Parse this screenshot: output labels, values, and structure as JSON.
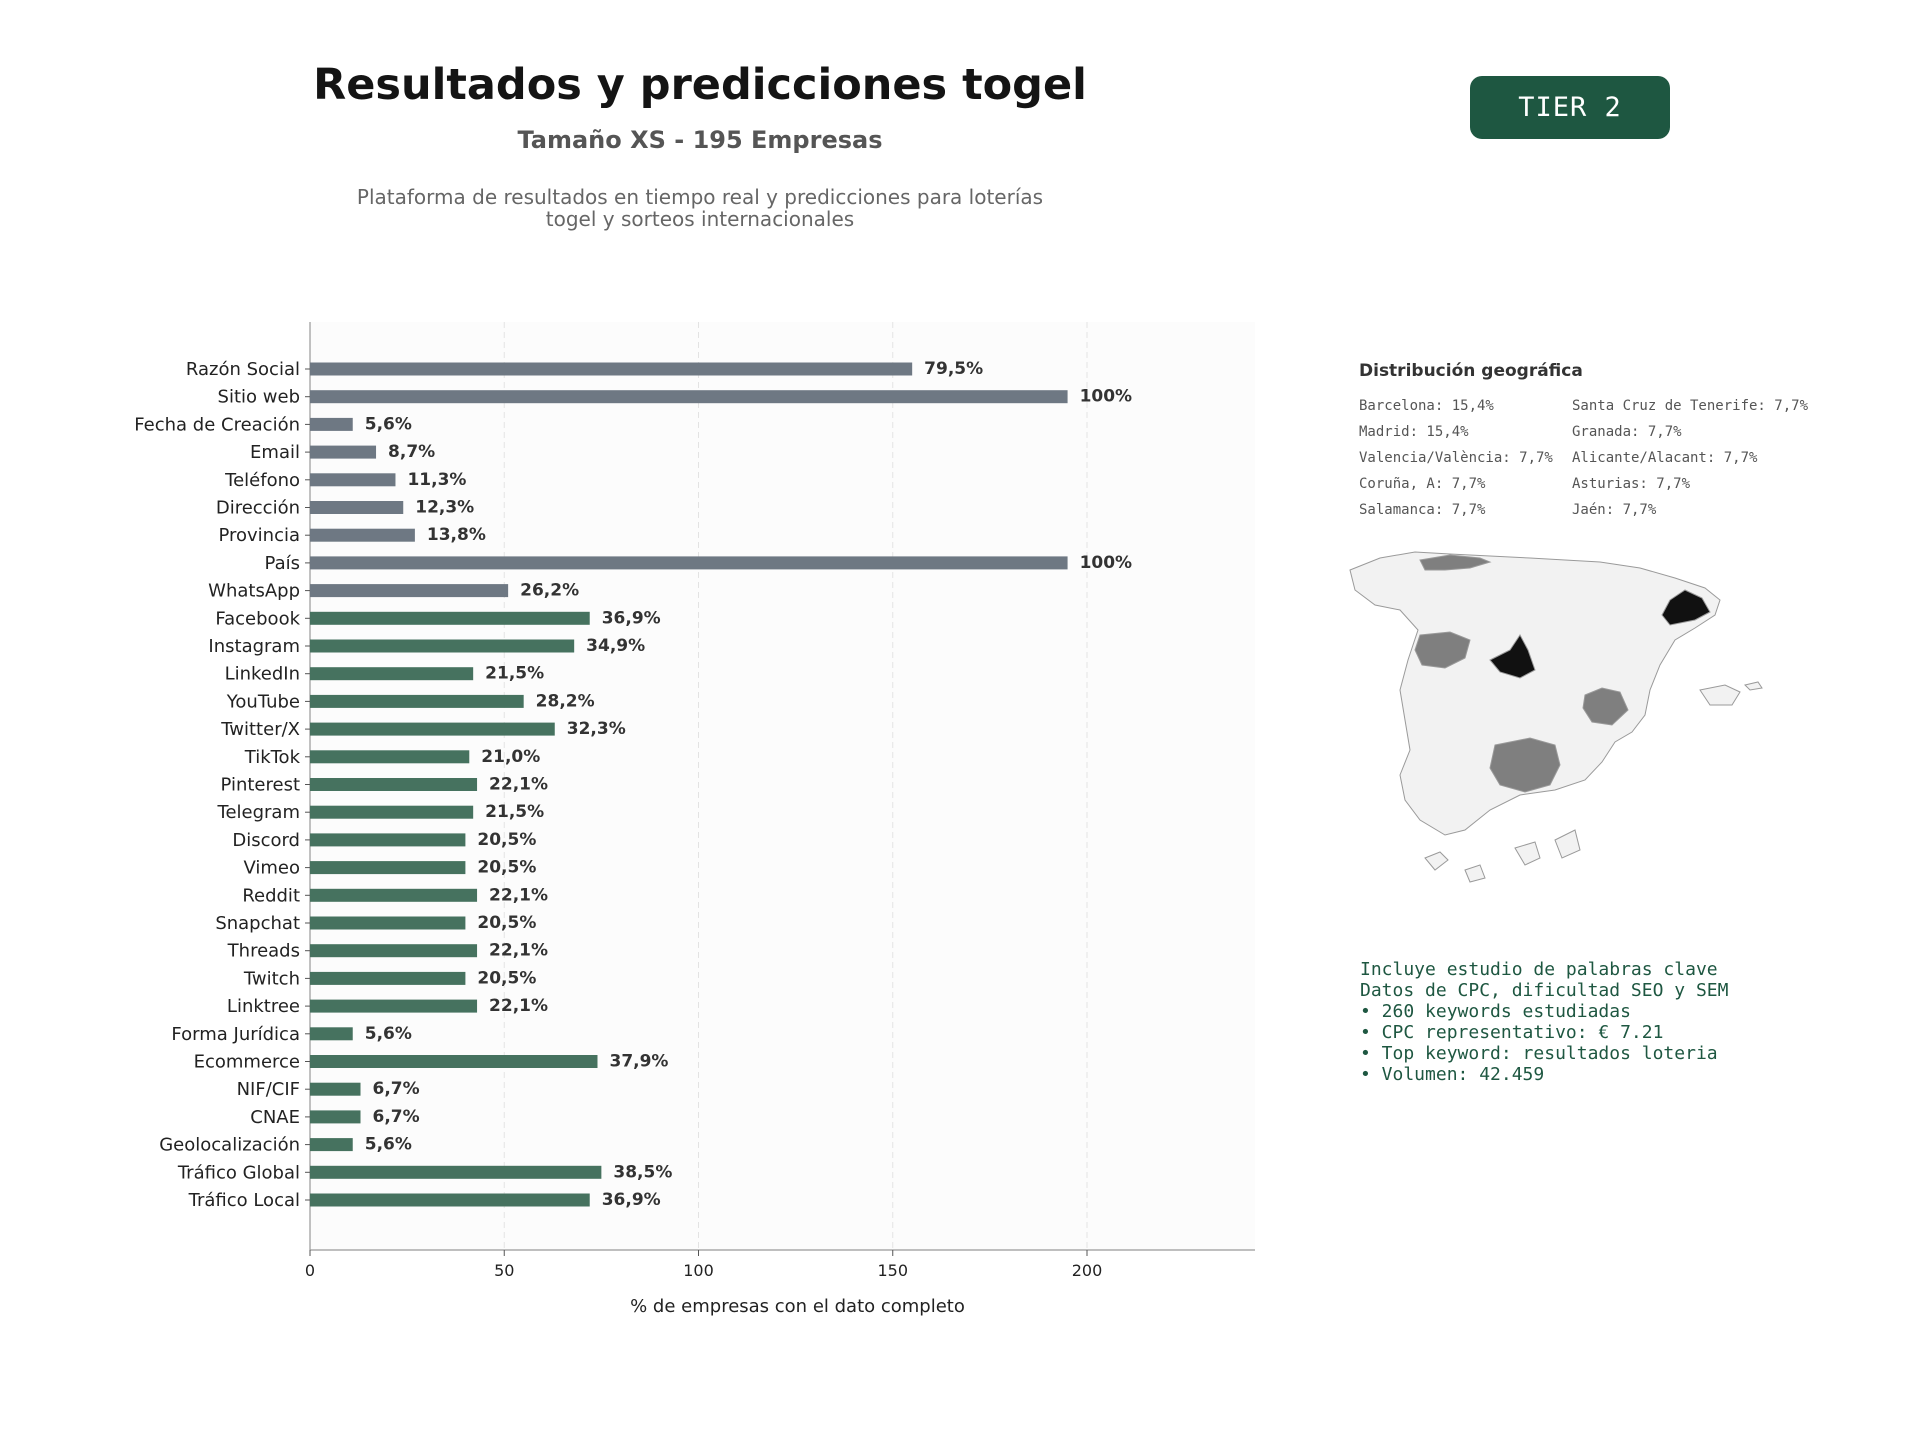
{
  "header": {
    "title": "Resultados y predicciones togel",
    "subtitle": "Tamaño XS - 195 Empresas",
    "description_lines": [
      "Plataforma de resultados en tiempo real y predicciones para loterías",
      "togel y sorteos internacionales"
    ],
    "tier_badge": "TIER 2"
  },
  "colors": {
    "gray_bar": "#6e7883",
    "green_bar": "#46725f",
    "accent": "#1e5741",
    "region_dark": "#111111",
    "region_mid": "#7f7f7f",
    "region_light": "#f2f2f2"
  },
  "chart_data": {
    "type": "bar",
    "orientation": "horizontal",
    "xlabel": "% de empresas con el dato completo",
    "xlim": [
      0,
      243
    ],
    "xticks": [
      0,
      50,
      100,
      150,
      200
    ],
    "grid": "vertical dashed",
    "categories": [
      "Razón Social",
      "Sitio web",
      "Fecha de Creación",
      "Email",
      "Teléfono",
      "Dirección",
      "Provincia",
      "País",
      "WhatsApp",
      "Facebook",
      "Instagram",
      "LinkedIn",
      "YouTube",
      "Twitter/X",
      "TikTok",
      "Pinterest",
      "Telegram",
      "Discord",
      "Vimeo",
      "Reddit",
      "Snapchat",
      "Threads",
      "Twitch",
      "Linktree",
      "Forma Jurídica",
      "Ecommerce",
      "NIF/CIF",
      "CNAE",
      "Geolocalización",
      "Tráfico Global",
      "Tráfico Local"
    ],
    "values": [
      155,
      195,
      11,
      17,
      22,
      24,
      27,
      195,
      51,
      72,
      68,
      42,
      55,
      63,
      41,
      43,
      42,
      40,
      40,
      43,
      40,
      43,
      40,
      43,
      11,
      74,
      13,
      13,
      11,
      75,
      72
    ],
    "labels": [
      "79,5%",
      "100%",
      "5,6%",
      "8,7%",
      "11,3%",
      "12,3%",
      "13,8%",
      "100%",
      "26,2%",
      "36,9%",
      "34,9%",
      "21,5%",
      "28,2%",
      "32,3%",
      "21,0%",
      "22,1%",
      "21,5%",
      "20,5%",
      "20,5%",
      "22,1%",
      "20,5%",
      "22,1%",
      "20,5%",
      "22,1%",
      "5,6%",
      "37,9%",
      "6,7%",
      "6,7%",
      "5,6%",
      "38,5%",
      "36,9%"
    ],
    "bar_colors": [
      "gray",
      "gray",
      "gray",
      "gray",
      "gray",
      "gray",
      "gray",
      "gray",
      "gray",
      "green",
      "green",
      "green",
      "green",
      "green",
      "green",
      "green",
      "green",
      "green",
      "green",
      "green",
      "green",
      "green",
      "green",
      "green",
      "green",
      "green",
      "green",
      "green",
      "green",
      "green",
      "green"
    ]
  },
  "geo": {
    "title": "Distribución geográfica",
    "items": [
      "Barcelona: 15,4%",
      "Madrid: 15,4%",
      "Valencia/València: 7,7%",
      "Coruña, A: 7,7%",
      "Salamanca: 7,7%",
      "Santa Cruz de Tenerife: 7,7%",
      "Granada: 7,7%",
      "Alicante/Alacant: 7,7%",
      "Asturias: 7,7%",
      "Jaén: 7,7%"
    ]
  },
  "keywords": {
    "lines": [
      "Incluye estudio de palabras clave",
      "Datos de CPC, dificultad SEO y SEM",
      "",
      "• 260 keywords estudiadas",
      "• CPC representativo: € 7.21",
      "• Top keyword: resultados loteria",
      "• Volumen: 42.459"
    ]
  }
}
